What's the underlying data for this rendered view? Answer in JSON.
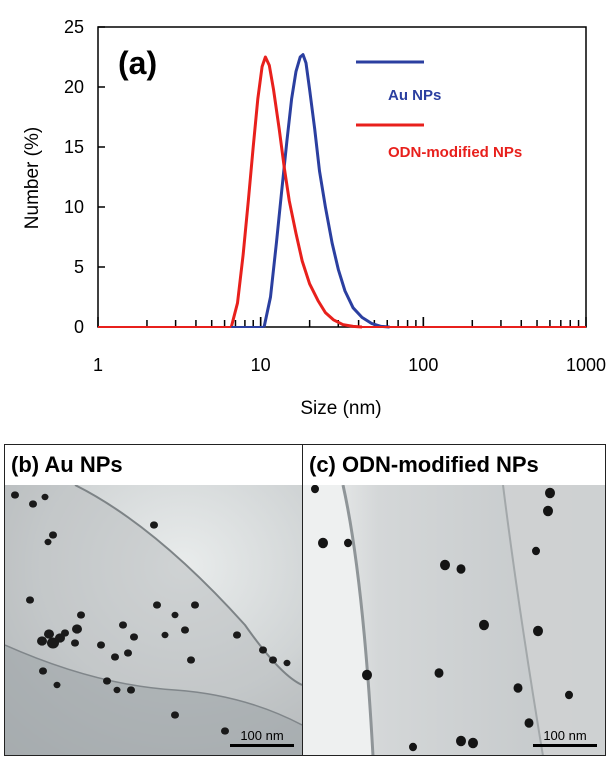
{
  "chart_data": {
    "type": "line",
    "panel_label": "(a)",
    "xlabel": "Size (nm)",
    "ylabel": "Number (%)",
    "xscale": "log",
    "xlim": [
      1,
      1000
    ],
    "ylim": [
      0,
      25
    ],
    "xticks": [
      1,
      10,
      100,
      1000
    ],
    "xtick_labels": [
      "1",
      "10",
      "100",
      "1000"
    ],
    "yticks": [
      0,
      5,
      10,
      15,
      20,
      25
    ],
    "ytick_labels": [
      "0",
      "5",
      "10",
      "15",
      "20",
      "25"
    ],
    "grid": false,
    "legend_position": "top-right",
    "series": [
      {
        "name": "Au NPs",
        "color": "#2b3fa0",
        "x": [
          10.5,
          11.5,
          12.5,
          13.5,
          14.5,
          15.5,
          16.5,
          17.5,
          18.2,
          19,
          20,
          21.5,
          23,
          25,
          27.5,
          30,
          33,
          37,
          42,
          48,
          55,
          62
        ],
        "y": [
          0,
          2.5,
          7,
          11.5,
          15.5,
          19,
          21.3,
          22.5,
          22.7,
          22,
          19.8,
          16.5,
          13,
          10,
          7,
          4.8,
          3,
          1.6,
          0.8,
          0.3,
          0.05,
          0
        ]
      },
      {
        "name": "ODN-modified NPs",
        "color": "#e8201c",
        "x": [
          6.6,
          7.2,
          7.8,
          8.4,
          9,
          9.6,
          10.2,
          10.7,
          11.3,
          12,
          13,
          14,
          15,
          16.5,
          18,
          20,
          22.5,
          25,
          28,
          32,
          37,
          42
        ],
        "y": [
          0,
          2,
          6,
          10.5,
          15,
          19,
          21.7,
          22.5,
          21.8,
          19.8,
          16.5,
          13.2,
          10.5,
          7.8,
          5.5,
          3.6,
          2.2,
          1.2,
          0.6,
          0.2,
          0.05,
          0
        ]
      }
    ]
  },
  "panels": [
    {
      "label": "(b) Au NPs",
      "scalebar": "100 nm"
    },
    {
      "label": "(c) ODN-modified NPs",
      "scalebar": "100 nm"
    }
  ]
}
